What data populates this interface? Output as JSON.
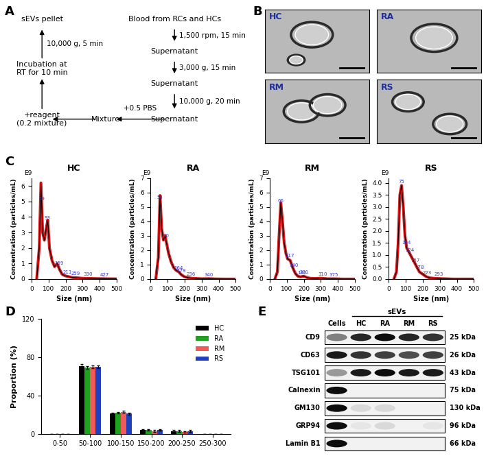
{
  "panel_labels": [
    "A",
    "B",
    "C",
    "D",
    "E"
  ],
  "diagram": {
    "nodes": [
      "Blood from RCs and HCs",
      "Supernatant",
      "Supernatant",
      "Supernatant",
      "Mixture",
      "+reagent\n(0.2 mixture)",
      "Incubation at\nRT for 10 min",
      "sEVs pellet"
    ],
    "edges": [
      {
        "from": 0,
        "to": 1,
        "label": "1,500 rpm, 15 min"
      },
      {
        "from": 1,
        "to": 2,
        "label": "3,000 g, 15 min"
      },
      {
        "from": 2,
        "to": 3,
        "label": "10,000 g, 20 min"
      },
      {
        "from": 3,
        "to": 4,
        "label": "+0.5 PBS"
      },
      {
        "from": 4,
        "to": 5
      },
      {
        "from": 5,
        "to": 6
      },
      {
        "from": 6,
        "to": 7,
        "label": "10,000 g, 5 min"
      }
    ]
  },
  "images": {
    "labels": [
      "HC",
      "RA",
      "RM",
      "RS"
    ]
  },
  "chart_data": [
    {
      "type": "line",
      "title": "HC",
      "x_label": "Size (nm)",
      "y_label": "Concentration (particles/mL)",
      "y_unit": "E9",
      "color": "#e31a1c",
      "x": [
        30,
        45,
        55,
        65,
        75,
        85,
        95,
        105,
        120,
        135,
        150,
        165,
        180,
        200,
        220,
        240,
        270,
        300,
        340,
        380,
        430,
        500
      ],
      "values": [
        0,
        2.0,
        6.2,
        3.0,
        2.5,
        3.2,
        3.8,
        2.0,
        1.2,
        0.8,
        1.0,
        0.6,
        0.3,
        0.2,
        0.15,
        0.1,
        0.08,
        0.05,
        0.04,
        0.03,
        0.02,
        0.01
      ],
      "peaks": [
        59,
        93,
        159,
        211,
        259,
        330,
        427
      ],
      "xlim": [
        0,
        500
      ],
      "xticks": [
        0,
        100,
        200,
        300,
        400,
        500
      ],
      "ylim": [
        0,
        6.5
      ],
      "yticks": [
        0,
        1,
        2,
        3,
        4,
        5,
        6
      ]
    },
    {
      "type": "line",
      "title": "RA",
      "x_label": "Size (nm)",
      "y_label": "Concentration (particles/mL)",
      "y_unit": "E9",
      "color": "#e31a1c",
      "x": [
        30,
        45,
        55,
        65,
        75,
        85,
        95,
        105,
        120,
        135,
        150,
        165,
        180,
        200,
        220,
        240,
        270,
        300,
        340,
        380,
        430,
        500
      ],
      "values": [
        0,
        1.5,
        5.8,
        3.5,
        2.7,
        3.0,
        2.4,
        1.8,
        1.2,
        0.8,
        0.6,
        0.5,
        0.3,
        0.15,
        0.1,
        0.06,
        0.04,
        0.02,
        0.03,
        0.01,
        0,
        0
      ],
      "peaks": [
        54,
        90,
        164,
        179,
        236,
        340
      ],
      "xlim": [
        0,
        500
      ],
      "xticks": [
        0,
        100,
        200,
        300,
        400,
        500
      ],
      "ylim": [
        0,
        7
      ],
      "yticks": [
        0,
        1,
        2,
        3,
        4,
        5,
        6,
        7
      ]
    },
    {
      "type": "line",
      "title": "RM",
      "x_label": "Size (nm)",
      "y_label": "Concentration (particles/mL)",
      "y_unit": "E9",
      "color": "#e31a1c",
      "x": [
        30,
        45,
        55,
        65,
        75,
        85,
        95,
        105,
        120,
        135,
        150,
        165,
        180,
        200,
        220,
        240,
        270,
        300,
        340,
        380,
        430,
        500
      ],
      "values": [
        0,
        0.5,
        3.0,
        5.3,
        4.0,
        2.5,
        1.8,
        1.4,
        1.3,
        0.8,
        0.4,
        0.2,
        0.15,
        0.2,
        0.1,
        0.05,
        0.04,
        0.06,
        0.02,
        0.02,
        0,
        0
      ],
      "peaks": [
        66,
        117,
        140,
        190,
        201,
        310,
        375
      ],
      "xlim": [
        0,
        500
      ],
      "xticks": [
        0,
        100,
        200,
        300,
        400,
        500
      ],
      "ylim": [
        0,
        7
      ],
      "yticks": [
        0,
        1,
        2,
        3,
        4,
        5,
        6,
        7
      ]
    },
    {
      "type": "line",
      "title": "RS",
      "x_label": "Size (nm)",
      "y_label": "Concentration (particles/mL)",
      "y_unit": "E9",
      "color": "#e31a1c",
      "x": [
        30,
        45,
        55,
        65,
        75,
        85,
        95,
        105,
        120,
        135,
        150,
        165,
        180,
        200,
        220,
        240,
        270,
        300,
        340,
        380,
        430,
        500
      ],
      "values": [
        0,
        0.3,
        1.5,
        3.5,
        3.9,
        3.0,
        1.8,
        1.3,
        1.1,
        0.9,
        0.7,
        0.5,
        0.3,
        0.2,
        0.1,
        0.05,
        0.03,
        0.02,
        0.01,
        0,
        0,
        0
      ],
      "peaks": [
        75,
        104,
        124,
        157,
        178,
        223,
        293
      ],
      "xlim": [
        0,
        500
      ],
      "xticks": [
        0,
        100,
        200,
        300,
        400,
        500
      ],
      "ylim": [
        0,
        4.2
      ],
      "yticks": [
        {
          "value": 0,
          "label": "0.0"
        },
        0.5,
        {
          "value": 1,
          "label": "1.0"
        },
        1.5,
        {
          "value": 2,
          "label": "2.0"
        },
        2.5,
        {
          "value": 3,
          "label": "3.0"
        },
        3.5,
        {
          "value": 4,
          "label": "4.0"
        }
      ]
    },
    {
      "type": "bar",
      "y_label": "Proportion (%)",
      "categories": [
        "0-50",
        "50-100",
        "100-150",
        "150-200",
        "200-250",
        "250-300"
      ],
      "series": [
        {
          "name": "HC",
          "color": "#000000",
          "values": [
            0,
            71,
            21,
            4,
            3,
            0
          ],
          "errors": [
            0,
            1.5,
            1.0,
            0.8,
            0.8,
            0
          ]
        },
        {
          "name": "RA",
          "color": "#1fa31f",
          "values": [
            0,
            69,
            22,
            4,
            3,
            0
          ],
          "errors": [
            0,
            1.5,
            1.0,
            0.8,
            0.8,
            0
          ]
        },
        {
          "name": "RM",
          "color": "#ef5a5a",
          "values": [
            0,
            70,
            23,
            3,
            2,
            0
          ],
          "errors": [
            0,
            1.5,
            1.0,
            0.8,
            0.8,
            0
          ]
        },
        {
          "name": "RS",
          "color": "#1f3fbf",
          "values": [
            0,
            70,
            21,
            4,
            3,
            0
          ],
          "errors": [
            0,
            1.5,
            1.0,
            0.8,
            0.8,
            0
          ]
        }
      ],
      "ylim": [
        0,
        120
      ],
      "yticks": [
        0,
        40,
        80,
        120
      ],
      "legend": "upper right"
    }
  ],
  "blot": {
    "group_label": "sEVs",
    "lanes": [
      "Cells",
      "HC",
      "RA",
      "RM",
      "RS"
    ],
    "rows": [
      {
        "name": "CD9",
        "size": "25 kDa",
        "intensity": [
          0.5,
          0.85,
          0.95,
          0.85,
          0.8
        ]
      },
      {
        "name": "CD63",
        "size": "26 kDa",
        "intensity": [
          0.9,
          0.8,
          0.75,
          0.7,
          0.75
        ]
      },
      {
        "name": "TSG101",
        "size": "43 kDa",
        "intensity": [
          0.4,
          0.9,
          0.95,
          0.9,
          0.9
        ]
      },
      {
        "name": "Calnexin",
        "size": "75 kDa",
        "intensity": [
          0.95,
          0,
          0.05,
          0,
          0
        ]
      },
      {
        "name": "GM130",
        "size": "130 kDa",
        "intensity": [
          0.95,
          0.15,
          0.15,
          0.05,
          0.05
        ]
      },
      {
        "name": "GRP94",
        "size": "96 kDa",
        "intensity": [
          0.95,
          0.1,
          0.15,
          0.05,
          0.1
        ]
      },
      {
        "name": "Lamin B1",
        "size": "66 kDa",
        "intensity": [
          0.95,
          0,
          0,
          0,
          0
        ]
      }
    ]
  }
}
